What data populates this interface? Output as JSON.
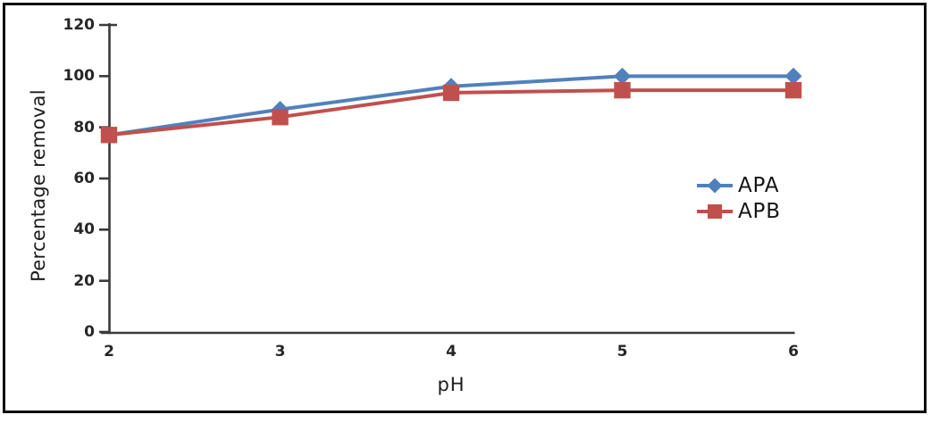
{
  "frame": {
    "border_color": "#0b0b0b",
    "background": "#ffffff"
  },
  "chart_data": {
    "type": "line",
    "title": "",
    "xlabel": "pH",
    "ylabel": "Percentage removal",
    "x": [
      2,
      3,
      4,
      5,
      6
    ],
    "x_tick_labels": [
      "2",
      "3",
      "4",
      "5",
      "6"
    ],
    "xlim": [
      2,
      6
    ],
    "ylim": [
      0,
      120
    ],
    "y_ticks": [
      0,
      20,
      40,
      60,
      80,
      100,
      120
    ],
    "grid": false,
    "legend_position": "center-right",
    "axis_color": "#3a3a3a",
    "text_color": "#1c1c1c",
    "series": [
      {
        "name": "APA",
        "marker": "diamond",
        "color": "#4F81BD",
        "values": [
          77,
          87,
          96,
          100,
          100
        ]
      },
      {
        "name": "APB",
        "marker": "square",
        "color": "#C0504D",
        "values": [
          77,
          84,
          93.5,
          94.5,
          94.5
        ]
      }
    ]
  }
}
